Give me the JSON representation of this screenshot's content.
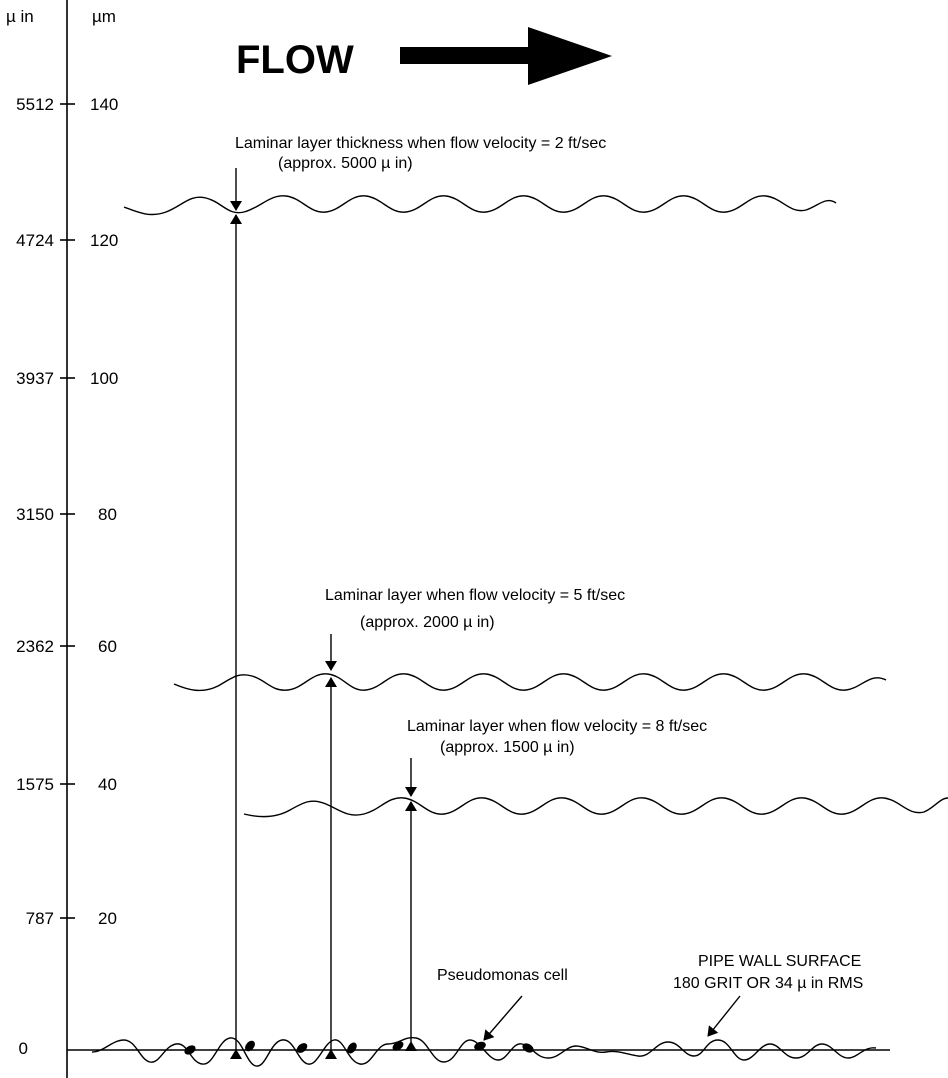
{
  "units": {
    "left": "µ in",
    "right": "µm"
  },
  "ticks": [
    {
      "uin": "5512",
      "um": "140"
    },
    {
      "uin": "4724",
      "um": "120"
    },
    {
      "uin": "3937",
      "um": "100"
    },
    {
      "uin": "3150",
      "um": "80"
    },
    {
      "uin": "2362",
      "um": "60"
    },
    {
      "uin": "1575",
      "um": "40"
    },
    {
      "uin": "787",
      "um": "20"
    },
    {
      "uin": "0",
      "um": ""
    }
  ],
  "flow_label": "FLOW",
  "layers": [
    {
      "line1": "Laminar layer thickness when flow velocity = 2 ft/sec",
      "line2": "(approx. 5000 µ in)",
      "velocity_ftsec": 2,
      "thickness_uin": 5000
    },
    {
      "line1": "Laminar layer when flow velocity = 5 ft/sec",
      "line2": "(approx. 2000 µ in)",
      "velocity_ftsec": 5,
      "thickness_uin": 2000
    },
    {
      "line1": "Laminar layer when flow velocity = 8 ft/sec",
      "line2": "(approx. 1500 µ in)",
      "velocity_ftsec": 8,
      "thickness_uin": 1500
    }
  ],
  "pseudomonas_label": "Pseudomonas cell",
  "pipe_wall": {
    "line1": "PIPE WALL SURFACE",
    "line2": "180 GRIT OR 34 µ in RMS"
  }
}
